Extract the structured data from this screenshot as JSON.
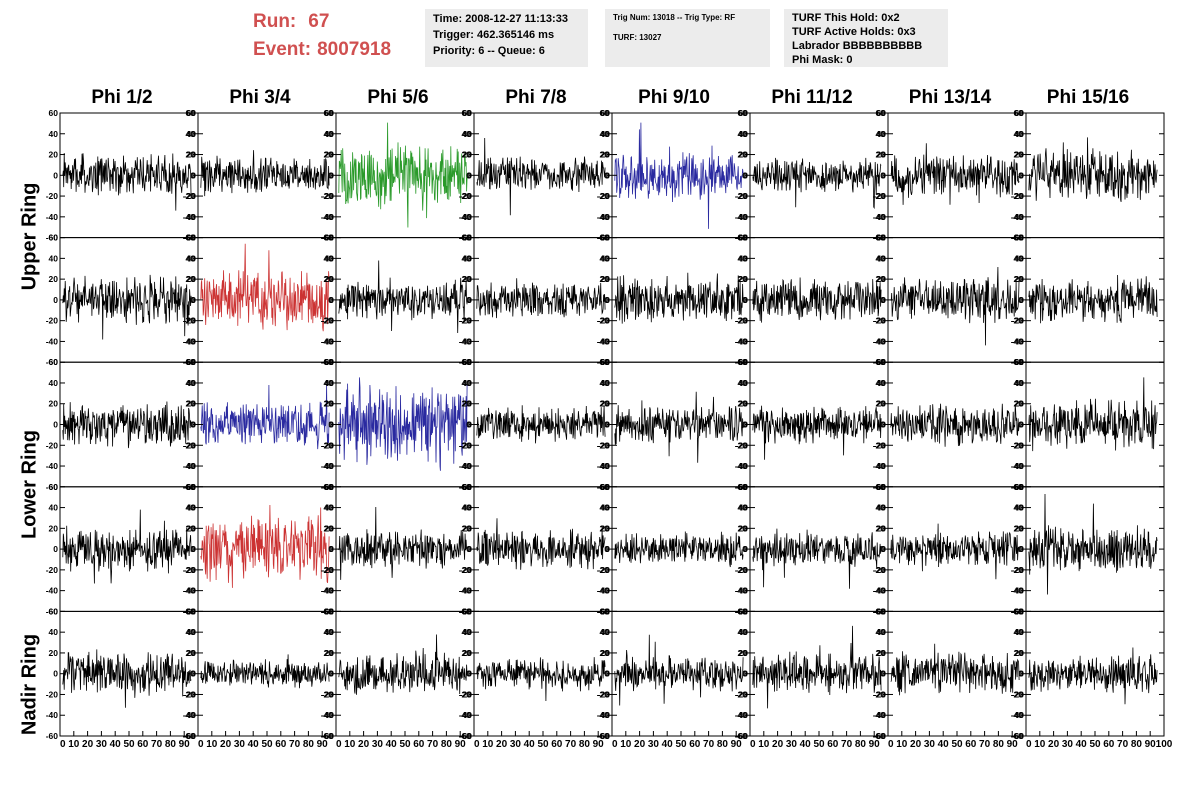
{
  "header": {
    "run_label": "Run:",
    "run_value": "67",
    "event_label": "Event:",
    "event_value": "8007918",
    "info_time": "Time: 2008-12-27 11:13:33",
    "info_trigger": "Trigger: 462.365146 ms",
    "info_priority": "Priority: 6 -- Queue: 6",
    "info_trig_num": "Trig Num: 13018 -- Trig Type: RF",
    "info_turf_num": "TURF: 13027",
    "info_turf_hold": "TURF This Hold: 0x2",
    "info_turf_active": "TURF Active Holds: 0x3",
    "info_labrador": "Labrador BBBBBBBBBB",
    "info_phi_mask": "Phi Mask: 0"
  },
  "chart_data": {
    "type": "line",
    "columns": [
      "Phi 1/2",
      "Phi 3/4",
      "Phi 5/6",
      "Phi 7/8",
      "Phi 9/10",
      "Phi 11/12",
      "Phi 13/14",
      "Phi 15/16"
    ],
    "ring_labels": [
      "Upper Ring",
      "Lower Ring",
      "Nadir Ring"
    ],
    "xlim": [
      0,
      100
    ],
    "ylim": [
      -60,
      60
    ],
    "x_ticks": [
      0,
      10,
      20,
      30,
      40,
      50,
      60,
      70,
      80,
      90,
      100
    ],
    "y_ticks": [
      -60,
      -40,
      -20,
      0,
      20,
      40,
      60
    ],
    "colors": {
      "default": "#000000",
      "green": "#2a9a2a",
      "blue": "#2a2aa0",
      "red": "#cc3333"
    },
    "panels": [
      {
        "row": 0,
        "col": 0,
        "color": "default",
        "amp": 14
      },
      {
        "row": 0,
        "col": 1,
        "color": "default",
        "amp": 12
      },
      {
        "row": 0,
        "col": 2,
        "color": "green",
        "amp": 22
      },
      {
        "row": 0,
        "col": 3,
        "color": "default",
        "amp": 12
      },
      {
        "row": 0,
        "col": 4,
        "color": "blue",
        "amp": 16
      },
      {
        "row": 0,
        "col": 5,
        "color": "default",
        "amp": 11
      },
      {
        "row": 0,
        "col": 6,
        "color": "default",
        "amp": 14
      },
      {
        "row": 0,
        "col": 7,
        "color": "default",
        "amp": 17
      },
      {
        "row": 1,
        "col": 0,
        "color": "default",
        "amp": 16
      },
      {
        "row": 1,
        "col": 1,
        "color": "red",
        "amp": 20
      },
      {
        "row": 1,
        "col": 2,
        "color": "default",
        "amp": 14
      },
      {
        "row": 1,
        "col": 3,
        "color": "default",
        "amp": 12
      },
      {
        "row": 1,
        "col": 4,
        "color": "default",
        "amp": 15
      },
      {
        "row": 1,
        "col": 5,
        "color": "default",
        "amp": 15
      },
      {
        "row": 1,
        "col": 6,
        "color": "default",
        "amp": 15
      },
      {
        "row": 1,
        "col": 7,
        "color": "default",
        "amp": 15
      },
      {
        "row": 2,
        "col": 0,
        "color": "default",
        "amp": 15
      },
      {
        "row": 2,
        "col": 1,
        "color": "blue",
        "amp": 15
      },
      {
        "row": 2,
        "col": 2,
        "color": "blue",
        "amp": 26
      },
      {
        "row": 2,
        "col": 3,
        "color": "default",
        "amp": 12
      },
      {
        "row": 2,
        "col": 4,
        "color": "default",
        "amp": 13
      },
      {
        "row": 2,
        "col": 5,
        "color": "default",
        "amp": 13
      },
      {
        "row": 2,
        "col": 6,
        "color": "default",
        "amp": 14
      },
      {
        "row": 2,
        "col": 7,
        "color": "default",
        "amp": 17
      },
      {
        "row": 3,
        "col": 0,
        "color": "default",
        "amp": 15
      },
      {
        "row": 3,
        "col": 1,
        "color": "red",
        "amp": 22
      },
      {
        "row": 3,
        "col": 2,
        "color": "default",
        "amp": 13
      },
      {
        "row": 3,
        "col": 3,
        "color": "default",
        "amp": 14
      },
      {
        "row": 3,
        "col": 4,
        "color": "default",
        "amp": 11
      },
      {
        "row": 3,
        "col": 5,
        "color": "default",
        "amp": 12
      },
      {
        "row": 3,
        "col": 6,
        "color": "default",
        "amp": 12
      },
      {
        "row": 3,
        "col": 7,
        "color": "default",
        "amp": 16
      },
      {
        "row": 4,
        "col": 0,
        "color": "default",
        "amp": 15
      },
      {
        "row": 4,
        "col": 1,
        "color": "default",
        "amp": 9
      },
      {
        "row": 4,
        "col": 2,
        "color": "default",
        "amp": 14
      },
      {
        "row": 4,
        "col": 3,
        "color": "default",
        "amp": 11
      },
      {
        "row": 4,
        "col": 4,
        "color": "default",
        "amp": 12
      },
      {
        "row": 4,
        "col": 5,
        "color": "default",
        "amp": 14
      },
      {
        "row": 4,
        "col": 6,
        "color": "default",
        "amp": 14
      },
      {
        "row": 4,
        "col": 7,
        "color": "default",
        "amp": 12
      }
    ]
  }
}
